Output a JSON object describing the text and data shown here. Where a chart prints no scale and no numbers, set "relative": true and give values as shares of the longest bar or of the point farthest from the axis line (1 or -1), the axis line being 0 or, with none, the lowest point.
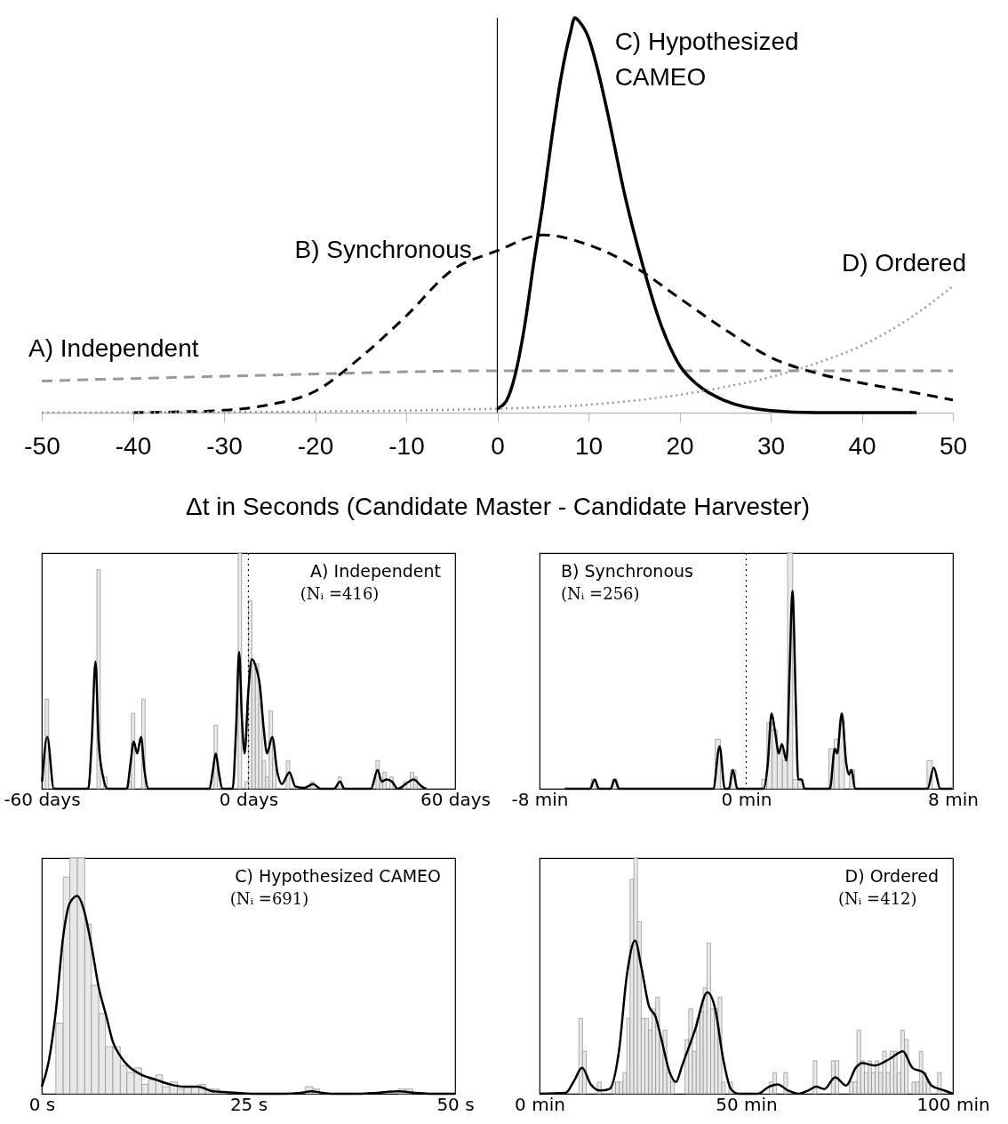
{
  "chart_data": [
    {
      "type": "line",
      "relative": true,
      "xlabel": "Δt in Seconds (Candidate Master - Candidate Harvester)",
      "xlim": [
        -50,
        50
      ],
      "xticks": [
        -50,
        -40,
        -30,
        -20,
        -10,
        0,
        10,
        20,
        30,
        40,
        50
      ],
      "ref_lines": [
        {
          "axis": "x",
          "value": 0,
          "color": "#000000"
        }
      ],
      "series": [
        {
          "name": "A) Independent",
          "color": "#999999",
          "line_style": "dashed",
          "x": [
            -50,
            -25,
            0,
            25,
            50
          ],
          "values": [
            0.08,
            0.095,
            0.106,
            0.106,
            0.106
          ]
        },
        {
          "name": "B) Synchronous",
          "color": "#000000",
          "line_style": "dashed",
          "x": [
            -40,
            -35,
            -30,
            -25,
            -20,
            -15,
            -10,
            -5,
            0,
            5,
            10,
            15,
            20,
            25,
            30,
            35,
            40,
            45,
            50
          ],
          "values": [
            0,
            0.002,
            0.006,
            0.02,
            0.054,
            0.14,
            0.245,
            0.36,
            0.41,
            0.45,
            0.425,
            0.37,
            0.29,
            0.21,
            0.14,
            0.1,
            0.075,
            0.054,
            0.032
          ]
        },
        {
          "name": "C) Hypothesized CAMEO",
          "color": "#000000",
          "line_style": "solid",
          "x": [
            0,
            1,
            2,
            3,
            4,
            5,
            6,
            7,
            8,
            8.5,
            9,
            10,
            11,
            12,
            14,
            16,
            18,
            20,
            22,
            25,
            30,
            35,
            46
          ],
          "values": [
            0.01,
            0.03,
            0.1,
            0.22,
            0.38,
            0.53,
            0.7,
            0.85,
            0.96,
            1,
            0.99,
            0.95,
            0.87,
            0.77,
            0.55,
            0.37,
            0.22,
            0.12,
            0.07,
            0.03,
            0.005,
            0,
            0
          ]
        },
        {
          "name": "D) Ordered",
          "color": "#999999",
          "line_style": "dotted",
          "x": [
            -50,
            -25,
            0,
            10,
            20,
            25,
            30,
            35,
            40,
            45,
            50
          ],
          "values": [
            0,
            0.002,
            0.01,
            0.02,
            0.045,
            0.065,
            0.09,
            0.125,
            0.17,
            0.235,
            0.32
          ]
        }
      ]
    },
    {
      "type": "histogram",
      "relative": true,
      "title": "A) Independent",
      "subtitle": "(Nᵢ =416)",
      "color": "#e8e8e8",
      "xlim": [
        -60,
        60
      ],
      "xticks": [
        {
          "value": -60,
          "label": "-60 days"
        },
        {
          "value": 0,
          "label": "0 days"
        },
        {
          "value": 60,
          "label": "60 days"
        }
      ],
      "ref_lines": [
        {
          "axis": "x",
          "value": 0,
          "color": "#000000",
          "line_style": "dotted"
        }
      ],
      "bins": [
        -60,
        -59,
        -58,
        -57,
        -56,
        -55,
        -54,
        -53,
        -52,
        -51,
        -50,
        -49,
        -48,
        -47,
        -46,
        -45,
        -44,
        -43,
        -42,
        -41,
        -40,
        -39,
        -38,
        -37,
        -36,
        -35,
        -34,
        -33,
        -32,
        -31,
        -30,
        -29,
        -28,
        -27,
        -26,
        -25,
        -24,
        -23,
        -22,
        -21,
        -20,
        -19,
        -18,
        -17,
        -16,
        -15,
        -14,
        -13,
        -12,
        -11,
        -10,
        -9,
        -8,
        -7,
        -6,
        -5,
        -4,
        -3,
        -2,
        -1,
        0,
        1,
        2,
        3,
        4,
        5,
        6,
        7,
        8,
        9,
        10,
        11,
        12,
        13,
        14,
        15,
        16,
        17,
        18,
        19,
        20,
        21,
        22,
        23,
        24,
        25,
        26,
        27,
        28,
        29,
        30,
        31,
        32,
        33,
        34,
        35,
        36,
        37,
        38,
        39,
        40,
        41,
        42,
        43,
        44,
        45,
        46,
        47,
        48,
        49,
        50,
        51,
        52,
        53,
        54,
        55,
        56,
        57,
        58,
        59,
        60
      ],
      "values": [
        0,
        0.38,
        0,
        0,
        0,
        0,
        0,
        0,
        0,
        0,
        0,
        0,
        0,
        0,
        0,
        0,
        0.93,
        0,
        0.05,
        0,
        0,
        0,
        0,
        0,
        0,
        0.03,
        0.32,
        0,
        0,
        0.38,
        0,
        0,
        0,
        0,
        0,
        0,
        0,
        0,
        0,
        0,
        0,
        0,
        0,
        0,
        0,
        0,
        0,
        0,
        0,
        0,
        0.27,
        0,
        0,
        0,
        0,
        0,
        0,
        1,
        0,
        0.03,
        0.8,
        0.53,
        0.53,
        0.36,
        0.12,
        0.05,
        0.33,
        0.13,
        0,
        0,
        0,
        0.12,
        0,
        0,
        0,
        0,
        0,
        0,
        0.03,
        0,
        0,
        0,
        0,
        0,
        0,
        0,
        0.05,
        0,
        0,
        0,
        0,
        0,
        0,
        0,
        0,
        0,
        0,
        0.12,
        0.02,
        0.07,
        0,
        0.05,
        0,
        0,
        0,
        0.03,
        0,
        0.07,
        0.05,
        0,
        0,
        0,
        0,
        0,
        0,
        0,
        0,
        0,
        0,
        0
      ],
      "series": [
        {
          "type": "line",
          "color": "#000000",
          "x": [
            -59.9,
            -58.4,
            -56.5,
            -46.5,
            -45.5,
            -44.4,
            -43.5,
            -42.2,
            -40.9,
            -35.3,
            -34.3,
            -33.3,
            -32.3,
            -31.2,
            -30.2,
            -29,
            -11.3,
            -10.4,
            -9.5,
            -8.6,
            -7.6,
            -4.6,
            -3.6,
            -2.7,
            -1.9,
            -1.1,
            -0.1,
            1,
            2.3,
            3.3,
            4.4,
            5.4,
            6.9,
            8.4,
            9.7,
            11.9,
            13.6,
            16.2,
            18.8,
            20.9,
            24.8,
            26.6,
            27.9,
            35.6,
            37.5,
            38.7,
            40,
            41.7,
            43.4,
            45.6,
            48,
            50.3,
            51.6
          ],
          "values": [
            0.03,
            0.22,
            0,
            0,
            0.2,
            0.54,
            0.2,
            0.05,
            0,
            0,
            0.1,
            0.2,
            0.15,
            0.22,
            0.08,
            0,
            0,
            0.07,
            0.15,
            0.07,
            0,
            0,
            0.25,
            0.58,
            0.3,
            0.15,
            0.4,
            0.55,
            0.51,
            0.44,
            0.26,
            0.15,
            0.22,
            0.07,
            0.02,
            0.07,
            0.01,
            0.004,
            0.02,
            0,
            0,
            0.03,
            0,
            0,
            0.08,
            0.03,
            0.04,
            0.03,
            0,
            0.02,
            0.04,
            0.01,
            0
          ]
        }
      ]
    },
    {
      "type": "histogram",
      "relative": true,
      "title": "B) Synchronous",
      "subtitle": "(Nᵢ =256)",
      "color": "#e8e8e8",
      "xlim": [
        -8,
        8
      ],
      "xticks": [
        {
          "value": -8,
          "label": "-8 min"
        },
        {
          "value": 0,
          "label": "0 min"
        },
        {
          "value": 8,
          "label": "8 min"
        }
      ],
      "ref_lines": [
        {
          "axis": "x",
          "value": 0,
          "color": "#000000",
          "line_style": "dotted"
        }
      ],
      "bins": [
        -8,
        -7.8,
        -7.6,
        -7.4,
        -7.2,
        -7,
        -6.8,
        -6.6,
        -6.4,
        -6.2,
        -6,
        -5.8,
        -5.6,
        -5.4,
        -5.2,
        -5,
        -4.8,
        -4.6,
        -4.4,
        -4.2,
        -4,
        -3.8,
        -3.6,
        -3.4,
        -3.2,
        -3,
        -2.8,
        -2.6,
        -2.4,
        -2.2,
        -2,
        -1.8,
        -1.6,
        -1.4,
        -1.2,
        -1,
        -0.8,
        -0.6,
        -0.4,
        -0.2,
        0,
        0.2,
        0.4,
        0.6,
        0.8,
        1,
        1.2,
        1.4,
        1.6,
        1.8,
        2,
        2.2,
        2.4,
        2.6,
        2.8,
        3,
        3.2,
        3.4,
        3.6,
        3.8,
        4,
        4.2,
        4.4,
        4.6,
        4.8,
        5,
        5.2,
        5.4,
        5.6,
        5.8,
        6,
        6.2,
        6.4,
        6.6,
        6.8,
        7,
        7.2,
        7.4,
        7.6,
        7.8,
        8
      ],
      "values": [
        0,
        0,
        0,
        0,
        0,
        0,
        0,
        0,
        0,
        0,
        0.04,
        0,
        0,
        0,
        0.04,
        0,
        0,
        0,
        0,
        0,
        0,
        0,
        0,
        0,
        0,
        0,
        0,
        0,
        0,
        0,
        0,
        0,
        0,
        0,
        0.21,
        0,
        0,
        0.08,
        0,
        0,
        0,
        0,
        0,
        0.04,
        0.28,
        0.25,
        0.17,
        0.12,
        1,
        0.04,
        0.04,
        0,
        0,
        0,
        0,
        0,
        0.17,
        0.21,
        0.29,
        0,
        0.08,
        0,
        0,
        0,
        0,
        0,
        0,
        0,
        0,
        0,
        0,
        0,
        0,
        0,
        0,
        0.12,
        0,
        0,
        0,
        0
      ],
      "series": [
        {
          "type": "line",
          "color": "#000000",
          "x": [
            -7.02,
            -6.04,
            -5.87,
            -5.7,
            -5.25,
            -5.09,
            -4.92,
            -1.28,
            -1.03,
            -0.83,
            -0.67,
            -0.52,
            -0.34,
            0.67,
            0.83,
            0.98,
            1.12,
            1.26,
            1.38,
            1.56,
            1.68,
            1.79,
            1.92,
            2.01,
            2.14,
            2.26,
            3.24,
            3.43,
            3.52,
            3.7,
            3.87,
            3.97,
            4.08,
            4.21,
            7.02,
            7.26,
            7.51,
            7.97
          ],
          "values": [
            0,
            0,
            0.04,
            0,
            0,
            0.04,
            0,
            0,
            0.18,
            0,
            0,
            0.08,
            0,
            0,
            0.1,
            0.32,
            0.24,
            0.15,
            0.19,
            0.12,
            0.5,
            0.84,
            0.36,
            0.04,
            0.04,
            0,
            0,
            0.17,
            0.15,
            0.32,
            0.11,
            0.06,
            0.08,
            0,
            0,
            0.09,
            0,
            0
          ]
        }
      ]
    },
    {
      "type": "histogram",
      "relative": true,
      "title": "C) Hypothesized CAMEO",
      "subtitle": "(Nᵢ =691)",
      "color": "#e8e8e8",
      "xlim": [
        0,
        50
      ],
      "xticks": [
        {
          "value": 0,
          "label": "0 s"
        },
        {
          "value": 25,
          "label": "25 s"
        },
        {
          "value": 50,
          "label": "50 s"
        }
      ],
      "bins": [
        1.7,
        2.6,
        3.4,
        4.3,
        5.2,
        6.0,
        6.9,
        7.7,
        8.6,
        9.5,
        10.3,
        11.2,
        12.1,
        12.9,
        13.8,
        14.6,
        15.5,
        16.4,
        17.2,
        18.1,
        19.0,
        19.8,
        20.7,
        21.5,
        22.4,
        31.9,
        32.8,
        33.6,
        43.1,
        44.0,
        44.9
      ],
      "values": [
        0.3,
        0.92,
        1,
        1,
        0.72,
        0.46,
        0.34,
        0.2,
        0.2,
        0.12,
        0.09,
        0.11,
        0.04,
        0.06,
        0.08,
        0.03,
        0.05,
        0.02,
        0.03,
        0.03,
        0.04,
        0.02,
        0.02,
        0.01,
        0,
        0.03,
        0.02,
        0,
        0.02,
        0.02
      ],
      "series": [
        {
          "type": "line",
          "color": "#000000",
          "x": [
            0,
            0.8,
            1.7,
            2.6,
            3.4,
            4.3,
            5.1,
            6,
            6.9,
            7.8,
            8.6,
            9.5,
            10.4,
            12.1,
            13.8,
            15.5,
            17.2,
            18.9,
            20.7,
            22.4,
            25.8,
            29.4,
            31.3,
            32.6,
            34.2,
            35.3,
            38.6,
            40.5,
            43.1,
            45.2,
            47.1,
            50
          ],
          "values": [
            0.03,
            0.13,
            0.35,
            0.67,
            0.81,
            0.84,
            0.78,
            0.63,
            0.45,
            0.33,
            0.22,
            0.16,
            0.12,
            0.08,
            0.06,
            0.04,
            0.03,
            0.03,
            0.01,
            0.007,
            0,
            0,
            0.004,
            0.01,
            0.003,
            0,
            0,
            0.004,
            0.01,
            0.004,
            0,
            0
          ]
        }
      ]
    },
    {
      "type": "histogram",
      "relative": true,
      "title": "D) Ordered",
      "subtitle": "(Nᵢ =412)",
      "color": "#e8e8e8",
      "xlim": [
        0,
        100
      ],
      "xticks": [
        {
          "value": 0,
          "label": "0 min"
        },
        {
          "value": 50,
          "label": "50 min"
        },
        {
          "value": 100,
          "label": "100 min"
        }
      ],
      "bins": [
        9.5,
        10.4,
        11.3,
        12.2,
        13.1,
        14.0,
        14.9,
        15.7,
        16.6,
        17.5,
        18.4,
        19.3,
        20.2,
        21.1,
        21.9,
        22.8,
        23.7,
        24.6,
        25.5,
        26.4,
        27.2,
        28.1,
        29.0,
        29.9,
        30.8,
        31.7,
        32.6,
        33.4,
        34.3,
        35.2,
        36.1,
        37.0,
        37.9,
        38.8,
        39.6,
        40.5,
        41.4,
        42.3,
        43.2,
        44.1,
        44.9,
        45.8,
        46.7,
        47.6,
        48.5,
        49.4,
        50.3,
        51.1,
        52.0,
        52.9,
        53.8,
        54.7,
        55.6,
        56.5,
        57.3,
        58.2,
        59.1,
        60.0,
        60.9,
        61.8,
        62.6,
        63.5,
        64.4,
        65.3,
        66.2,
        67.1,
        68.0,
        68.8,
        69.7,
        70.6,
        71.5,
        72.4,
        73.3,
        74.2,
        75.0,
        75.9,
        76.8,
        77.7,
        78.6,
        79.5,
        80.3,
        81.2,
        82.1,
        83.0,
        83.9,
        84.8,
        85.7,
        86.5,
        87.4,
        88.3,
        89.2,
        90.1,
        91.0,
        91.9,
        92.7,
        93.6,
        94.5,
        95.4,
        96.3,
        97.2
      ],
      "values": [
        0.32,
        0.18,
        0,
        0,
        0,
        0.05,
        0,
        0,
        0,
        0.05,
        0.05,
        0.05,
        0.09,
        0.32,
        0.91,
        1,
        0.73,
        0.32,
        0.32,
        0.27,
        0.36,
        0.41,
        0.23,
        0.27,
        0.09,
        0.05,
        0,
        0,
        0,
        0.23,
        0.36,
        0.18,
        0.32,
        0.35,
        0.45,
        0.64,
        0.36,
        0.36,
        0.41,
        0.05,
        0,
        0.05,
        0,
        0,
        0,
        0,
        0,
        0,
        0,
        0,
        0,
        0,
        0.05,
        0.09,
        0,
        0,
        0.09,
        0,
        0,
        0,
        0,
        0,
        0,
        0,
        0.14,
        0,
        0,
        0,
        0,
        0.14,
        0.14,
        0,
        0,
        0,
        0.05,
        0.05,
        0.27,
        0.14,
        0.09,
        0.14,
        0.09,
        0.14,
        0.09,
        0.18,
        0.09,
        0.18,
        0.18,
        0.09,
        0.27,
        0.23,
        0,
        0.05,
        0.05,
        0.18,
        0.09,
        0.05,
        0,
        0,
        0.09
      ],
      "series": [
        {
          "type": "line",
          "color": "#000000",
          "x": [
            0,
            6.3,
            8.2,
            10.3,
            12.4,
            14.7,
            16.9,
            19.2,
            21.1,
            23.1,
            24.6,
            26.5,
            28,
            29.5,
            31.5,
            33,
            34.5,
            37.6,
            40.6,
            42.5,
            44.4,
            46.3,
            48.2,
            52.8,
            55.5,
            57.6,
            60.1,
            62.7,
            65,
            66.9,
            68.9,
            71.5,
            74.2,
            76.5,
            78,
            81.1,
            84.9,
            87.9,
            90.2,
            92.9,
            94.8,
            97.9,
            100
          ],
          "values": [
            0,
            0.004,
            0.05,
            0.11,
            0.04,
            0.014,
            0.02,
            0.18,
            0.5,
            0.65,
            0.54,
            0.37,
            0.33,
            0.23,
            0.09,
            0.05,
            0.12,
            0.27,
            0.43,
            0.36,
            0.15,
            0.02,
            0,
            0,
            0.03,
            0.04,
            0.014,
            0,
            0.014,
            0.03,
            0.02,
            0.07,
            0.035,
            0.11,
            0.13,
            0.12,
            0.15,
            0.18,
            0.11,
            0.09,
            0.035,
            0.014,
            0
          ]
        }
      ]
    }
  ]
}
